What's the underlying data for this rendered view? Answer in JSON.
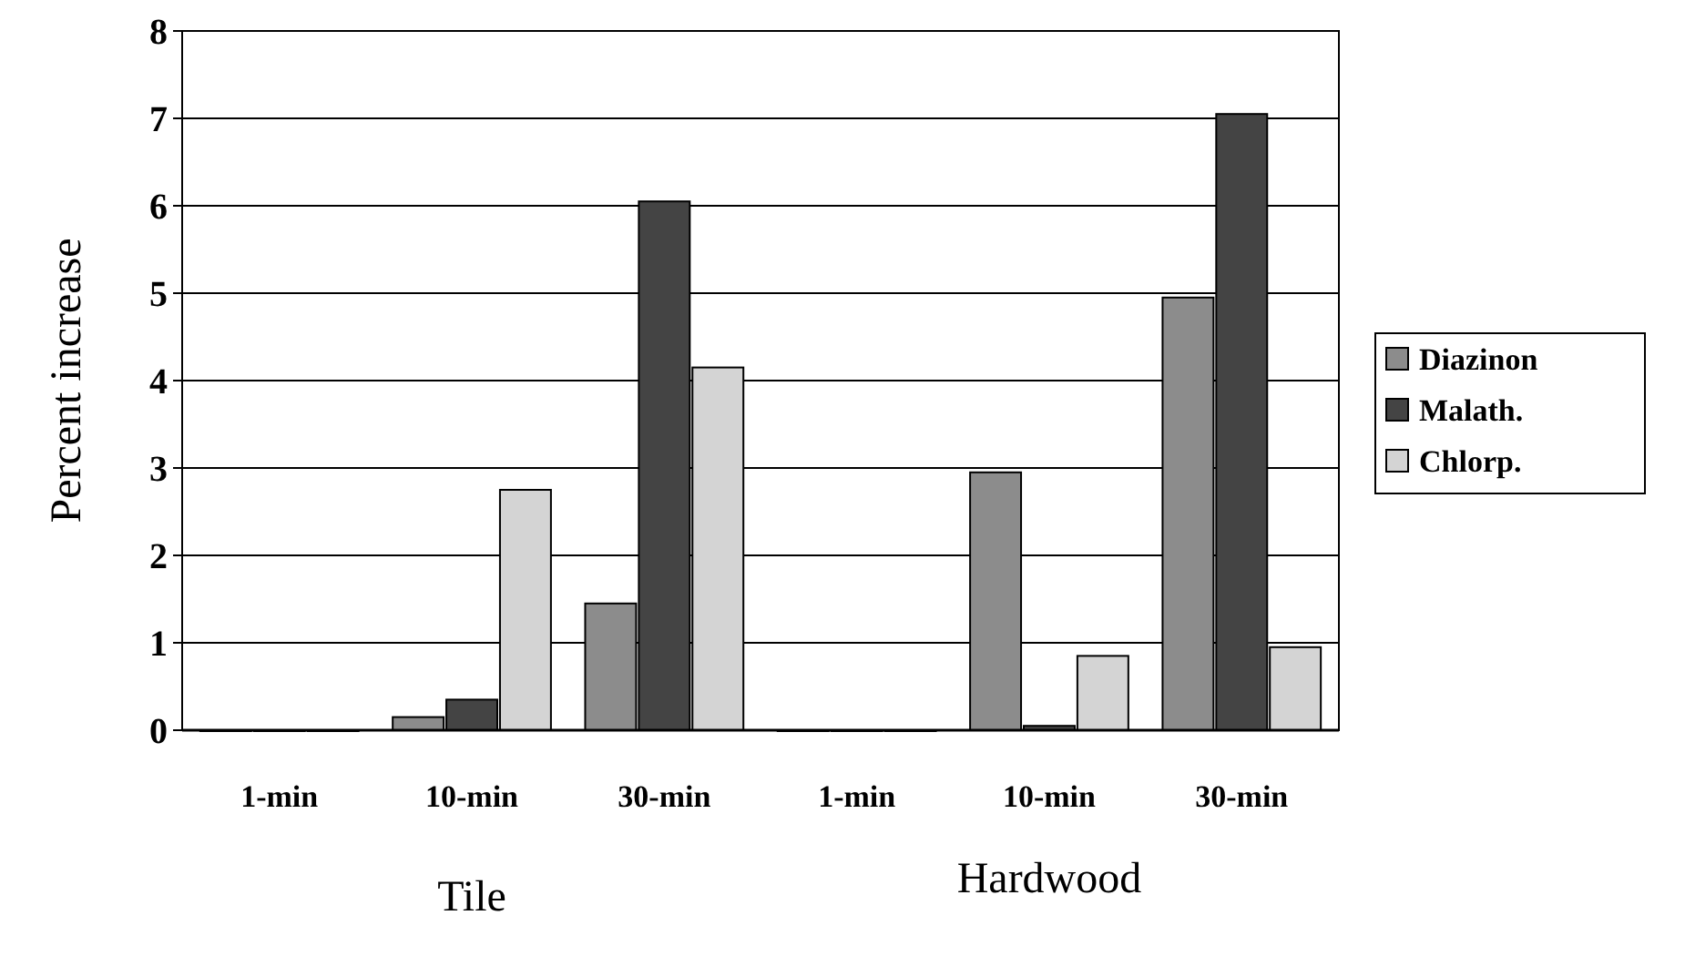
{
  "chart_data": {
    "type": "bar",
    "ylabel": "Percent increase",
    "categories": [
      "1-min",
      "10-min",
      "30-min",
      "1-min",
      "10-min",
      "30-min"
    ],
    "series": [
      {
        "name": "Diazinon",
        "color": "#8c8c8c",
        "values": [
          0,
          0.15,
          1.45,
          0,
          2.95,
          4.95
        ]
      },
      {
        "name": "Malath.",
        "color": "#444444",
        "values": [
          0,
          0.35,
          6.05,
          0,
          0.05,
          7.05
        ]
      },
      {
        "name": "Chlorp.",
        "color": "#d4d4d4",
        "values": [
          0,
          2.75,
          4.15,
          0,
          0.85,
          0.95
        ]
      }
    ],
    "ylim": [
      0,
      8
    ],
    "yticks": [
      0,
      1,
      2,
      3,
      4,
      5,
      6,
      7,
      8
    ],
    "grid": "y",
    "legend": "right",
    "annotations": [
      "Tile",
      "Hardwood"
    ]
  }
}
